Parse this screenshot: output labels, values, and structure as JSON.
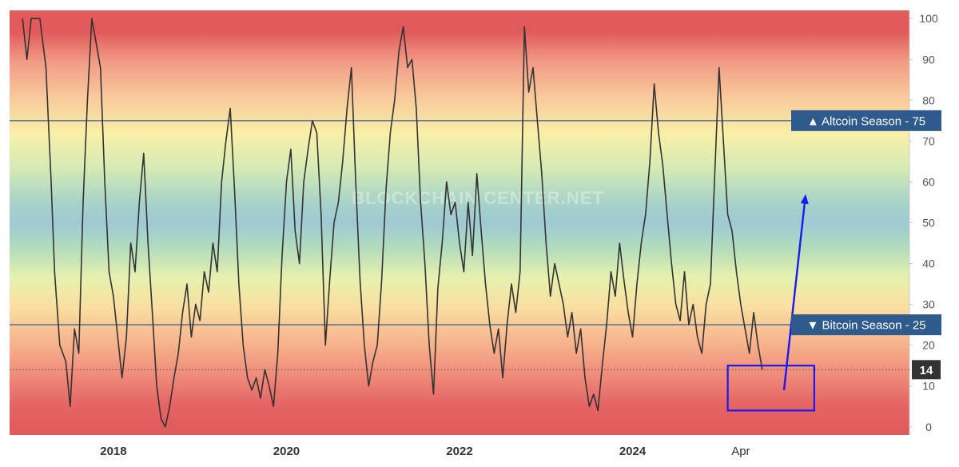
{
  "watermark": "BLOCKCHAIN CENTER.NET",
  "chart_data": {
    "type": "line",
    "title": "",
    "xlabel": "",
    "ylabel": "",
    "x_range": [
      2016.8,
      2027.2
    ],
    "ylim": [
      -2,
      102
    ],
    "y_ticks": [
      "0",
      "10",
      "20",
      "30",
      "40",
      "50",
      "60",
      "70",
      "80",
      "90",
      "100"
    ],
    "x_ticks": [
      {
        "x": 2018.0,
        "label": "2018"
      },
      {
        "x": 2020.0,
        "label": "2020"
      },
      {
        "x": 2022.0,
        "label": "2022"
      },
      {
        "x": 2024.0,
        "label": "2024"
      },
      {
        "x": 2025.25,
        "label": "Apr"
      }
    ],
    "reference_lines": [
      {
        "name": "Altcoin Season",
        "value": 75,
        "label": "▲ Altcoin Season - 75"
      },
      {
        "name": "Bitcoin Season",
        "value": 25,
        "label": "▼ Bitcoin Season - 25"
      }
    ],
    "current_value": {
      "value": 14,
      "label": "14"
    },
    "background": "vertical gradient: red near 0 and 100, orange, yellow, green, light blue around 50",
    "colors": {
      "line": "#333333",
      "reference_line": "#2f5a8c",
      "badge": "#2f5a8c",
      "current_badge": "#333333",
      "annotation": "#1a1aee"
    },
    "annotations": [
      {
        "type": "rectangle",
        "color": "#1a1aee",
        "x_range": [
          2025.1,
          2026.1
        ],
        "y_range": [
          4,
          15
        ]
      },
      {
        "type": "arrow",
        "color": "#1a1aee",
        "from": [
          2025.75,
          9
        ],
        "to": [
          2026.0,
          57
        ]
      }
    ],
    "series": [
      {
        "points": [
          [
            2016.95,
            100
          ],
          [
            2017.0,
            90
          ],
          [
            2017.05,
            100
          ],
          [
            2017.15,
            100
          ],
          [
            2017.22,
            88
          ],
          [
            2017.28,
            60
          ],
          [
            2017.32,
            38
          ],
          [
            2017.38,
            20
          ],
          [
            2017.45,
            16
          ],
          [
            2017.5,
            5
          ],
          [
            2017.55,
            24
          ],
          [
            2017.6,
            18
          ],
          [
            2017.65,
            55
          ],
          [
            2017.7,
            80
          ],
          [
            2017.75,
            100
          ],
          [
            2017.8,
            94
          ],
          [
            2017.85,
            88
          ],
          [
            2017.9,
            60
          ],
          [
            2017.95,
            38
          ],
          [
            2018.0,
            32
          ],
          [
            2018.05,
            22
          ],
          [
            2018.1,
            12
          ],
          [
            2018.15,
            22
          ],
          [
            2018.2,
            45
          ],
          [
            2018.25,
            38
          ],
          [
            2018.3,
            55
          ],
          [
            2018.35,
            67
          ],
          [
            2018.4,
            45
          ],
          [
            2018.45,
            28
          ],
          [
            2018.5,
            10
          ],
          [
            2018.55,
            2
          ],
          [
            2018.6,
            0
          ],
          [
            2018.65,
            5
          ],
          [
            2018.7,
            12
          ],
          [
            2018.75,
            18
          ],
          [
            2018.8,
            28
          ],
          [
            2018.85,
            35
          ],
          [
            2018.9,
            22
          ],
          [
            2018.95,
            30
          ],
          [
            2019.0,
            26
          ],
          [
            2019.05,
            38
          ],
          [
            2019.1,
            33
          ],
          [
            2019.15,
            45
          ],
          [
            2019.2,
            38
          ],
          [
            2019.25,
            60
          ],
          [
            2019.3,
            70
          ],
          [
            2019.35,
            78
          ],
          [
            2019.4,
            58
          ],
          [
            2019.45,
            35
          ],
          [
            2019.5,
            20
          ],
          [
            2019.55,
            12
          ],
          [
            2019.6,
            9
          ],
          [
            2019.65,
            12
          ],
          [
            2019.7,
            7
          ],
          [
            2019.75,
            14
          ],
          [
            2019.8,
            10
          ],
          [
            2019.85,
            5
          ],
          [
            2019.9,
            18
          ],
          [
            2019.95,
            42
          ],
          [
            2020.0,
            60
          ],
          [
            2020.05,
            68
          ],
          [
            2020.1,
            48
          ],
          [
            2020.15,
            40
          ],
          [
            2020.2,
            60
          ],
          [
            2020.25,
            68
          ],
          [
            2020.3,
            75
          ],
          [
            2020.35,
            72
          ],
          [
            2020.4,
            52
          ],
          [
            2020.45,
            20
          ],
          [
            2020.5,
            36
          ],
          [
            2020.55,
            50
          ],
          [
            2020.6,
            55
          ],
          [
            2020.65,
            65
          ],
          [
            2020.7,
            78
          ],
          [
            2020.75,
            88
          ],
          [
            2020.8,
            60
          ],
          [
            2020.85,
            36
          ],
          [
            2020.9,
            20
          ],
          [
            2020.95,
            10
          ],
          [
            2021.0,
            16
          ],
          [
            2021.05,
            20
          ],
          [
            2021.1,
            36
          ],
          [
            2021.15,
            58
          ],
          [
            2021.2,
            72
          ],
          [
            2021.25,
            80
          ],
          [
            2021.3,
            92
          ],
          [
            2021.35,
            98
          ],
          [
            2021.4,
            88
          ],
          [
            2021.45,
            90
          ],
          [
            2021.5,
            78
          ],
          [
            2021.55,
            55
          ],
          [
            2021.6,
            40
          ],
          [
            2021.65,
            20
          ],
          [
            2021.7,
            8
          ],
          [
            2021.75,
            34
          ],
          [
            2021.8,
            45
          ],
          [
            2021.85,
            60
          ],
          [
            2021.9,
            52
          ],
          [
            2021.95,
            55
          ],
          [
            2022.0,
            45
          ],
          [
            2022.05,
            38
          ],
          [
            2022.1,
            55
          ],
          [
            2022.15,
            42
          ],
          [
            2022.2,
            62
          ],
          [
            2022.25,
            48
          ],
          [
            2022.3,
            35
          ],
          [
            2022.35,
            25
          ],
          [
            2022.4,
            18
          ],
          [
            2022.45,
            24
          ],
          [
            2022.5,
            12
          ],
          [
            2022.55,
            25
          ],
          [
            2022.6,
            35
          ],
          [
            2022.65,
            28
          ],
          [
            2022.7,
            38
          ],
          [
            2022.75,
            98
          ],
          [
            2022.8,
            82
          ],
          [
            2022.85,
            88
          ],
          [
            2022.9,
            75
          ],
          [
            2022.95,
            62
          ],
          [
            2023.0,
            45
          ],
          [
            2023.05,
            32
          ],
          [
            2023.1,
            40
          ],
          [
            2023.15,
            35
          ],
          [
            2023.2,
            30
          ],
          [
            2023.25,
            22
          ],
          [
            2023.3,
            28
          ],
          [
            2023.35,
            18
          ],
          [
            2023.4,
            24
          ],
          [
            2023.45,
            12
          ],
          [
            2023.5,
            5
          ],
          [
            2023.55,
            8
          ],
          [
            2023.6,
            4
          ],
          [
            2023.65,
            15
          ],
          [
            2023.7,
            25
          ],
          [
            2023.75,
            38
          ],
          [
            2023.8,
            32
          ],
          [
            2023.85,
            45
          ],
          [
            2023.9,
            36
          ],
          [
            2023.95,
            28
          ],
          [
            2024.0,
            22
          ],
          [
            2024.05,
            35
          ],
          [
            2024.1,
            45
          ],
          [
            2024.15,
            52
          ],
          [
            2024.2,
            65
          ],
          [
            2024.25,
            84
          ],
          [
            2024.3,
            72
          ],
          [
            2024.35,
            64
          ],
          [
            2024.4,
            52
          ],
          [
            2024.45,
            40
          ],
          [
            2024.5,
            30
          ],
          [
            2024.55,
            26
          ],
          [
            2024.6,
            38
          ],
          [
            2024.65,
            25
          ],
          [
            2024.7,
            30
          ],
          [
            2024.75,
            22
          ],
          [
            2024.8,
            18
          ],
          [
            2024.85,
            30
          ],
          [
            2024.9,
            35
          ],
          [
            2024.95,
            62
          ],
          [
            2025.0,
            88
          ],
          [
            2025.05,
            70
          ],
          [
            2025.1,
            52
          ],
          [
            2025.15,
            48
          ],
          [
            2025.2,
            38
          ],
          [
            2025.25,
            30
          ],
          [
            2025.3,
            24
          ],
          [
            2025.35,
            18
          ],
          [
            2025.4,
            28
          ],
          [
            2025.45,
            20
          ],
          [
            2025.5,
            14
          ]
        ]
      }
    ]
  }
}
